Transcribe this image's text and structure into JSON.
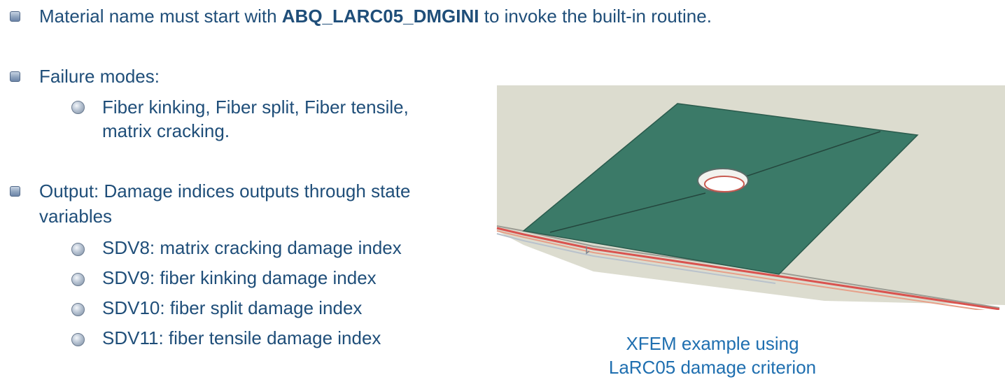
{
  "bullets": {
    "material": {
      "prefix": "Material name must start with ",
      "keyword": "ABQ_LARC05_DMGINI",
      "suffix": " to invoke the built-in routine."
    },
    "failure": {
      "label": "Failure modes:",
      "sub_line1": "Fiber kinking, Fiber split, Fiber tensile,",
      "sub_line2": "matrix cracking."
    },
    "output": {
      "line1": "Output: Damage indices outputs through state",
      "line2": "variables",
      "sub": [
        "SDV8: matrix cracking damage index",
        "SDV9: fiber kinking damage index",
        "SDV10: fiber split damage index",
        "SDV11: fiber tensile damage index"
      ]
    }
  },
  "caption": {
    "line1": "XFEM example using",
    "line2": "LaRC05 damage criterion"
  },
  "colors": {
    "text": "#1f4e79",
    "caption": "#1f6fb0",
    "laminate": "#3b7a68",
    "plate": "#dcdccf",
    "edge_red": "#d9534f"
  }
}
